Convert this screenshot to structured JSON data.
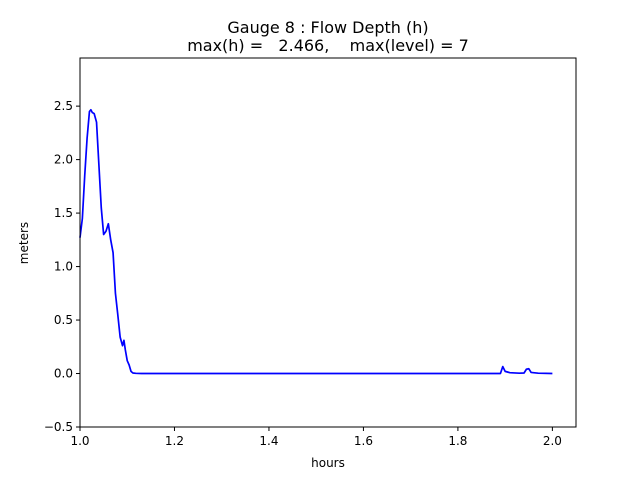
{
  "chart_data": {
    "type": "line",
    "title_line1": "Gauge 8 : Flow Depth (h)",
    "title_line2": "max(h) =   2.466,    max(level) = 7",
    "xlabel": "hours",
    "ylabel": "meters",
    "xlim": [
      1.0,
      2.05
    ],
    "ylim": [
      -0.5,
      2.95
    ],
    "xticks": [
      "1.0",
      "1.2",
      "1.4",
      "1.6",
      "1.8",
      "2.0"
    ],
    "yticks": [
      "−0.5",
      "0.0",
      "0.5",
      "1.0",
      "1.5",
      "2.0",
      "2.5"
    ],
    "series": [
      {
        "color": "#0000ff",
        "x": [
          1.0,
          1.005,
          1.01,
          1.015,
          1.02,
          1.023,
          1.026,
          1.03,
          1.035,
          1.04,
          1.045,
          1.05,
          1.055,
          1.06,
          1.065,
          1.07,
          1.075,
          1.08,
          1.085,
          1.09,
          1.093,
          1.096,
          1.1,
          1.104,
          1.108,
          1.112,
          1.118,
          1.13,
          1.15,
          1.2,
          1.4,
          1.6,
          1.8,
          1.89,
          1.895,
          1.9,
          1.91,
          1.93,
          1.94,
          1.945,
          1.95,
          1.955,
          1.97,
          2.0
        ],
        "y": [
          1.27,
          1.45,
          1.85,
          2.2,
          2.45,
          2.466,
          2.44,
          2.43,
          2.35,
          1.95,
          1.55,
          1.3,
          1.33,
          1.4,
          1.25,
          1.13,
          0.75,
          0.55,
          0.34,
          0.26,
          0.31,
          0.22,
          0.12,
          0.08,
          0.02,
          0.005,
          0.002,
          0.0,
          0.0,
          0.0,
          0.0,
          0.0,
          0.0,
          0.0,
          0.065,
          0.02,
          0.008,
          0.003,
          0.005,
          0.04,
          0.045,
          0.01,
          0.003,
          0.0
        ]
      }
    ]
  }
}
